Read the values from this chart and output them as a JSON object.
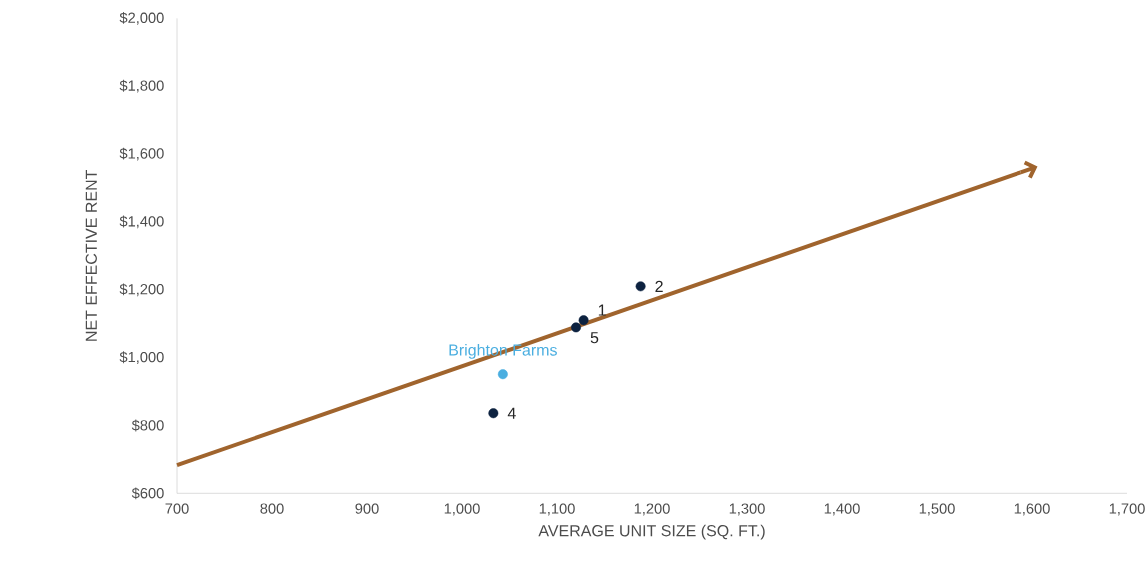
{
  "chart_data": {
    "type": "scatter",
    "xlabel": "AVERAGE UNIT SIZE (SQ. FT.)",
    "ylabel": "NET EFFECTIVE RENT",
    "xlim": [
      700,
      1700
    ],
    "ylim": [
      600,
      2000
    ],
    "xticks": [
      700,
      800,
      900,
      {
        "value": 1000,
        "label": "1,000"
      },
      {
        "value": 1100,
        "label": "1,100"
      },
      {
        "value": 1200,
        "label": "1,200"
      },
      {
        "value": 1300,
        "label": "1,300"
      },
      {
        "value": 1400,
        "label": "1,400"
      },
      {
        "value": 1500,
        "label": "1,500"
      },
      {
        "value": 1600,
        "label": "1,600"
      },
      {
        "value": 1700,
        "label": "1,700"
      }
    ],
    "yticks": [
      {
        "value": 600,
        "label": "$600"
      },
      {
        "value": 800,
        "label": "$800"
      },
      {
        "value": 1000,
        "label": "$1,000"
      },
      {
        "value": 1200,
        "label": "$1,200"
      },
      {
        "value": 1400,
        "label": "$1,400"
      },
      {
        "value": 1600,
        "label": "$1,600"
      },
      {
        "value": 1800,
        "label": "$1,800"
      },
      {
        "value": 2000,
        "label": "$2,000"
      }
    ],
    "grid": false,
    "legend": false,
    "series": [
      {
        "type": "line",
        "color": "#a0642d",
        "x": [
          700,
          1588
        ],
        "values": [
          683,
          1546
        ],
        "marker": "none",
        "line_style": "solid"
      },
      {
        "color": "#0d2240",
        "marker": "circle",
        "x": [
          1188,
          1128,
          1120,
          1033
        ],
        "values": [
          1210,
          1110,
          1089,
          836
        ]
      },
      {
        "name": "Brighton Farms",
        "color": "#4aaee0",
        "marker": "circle",
        "x": [
          1043
        ],
        "values": [
          951
        ]
      }
    ],
    "annotations": [
      {
        "text": "2",
        "x": 1188,
        "y": 1210
      },
      {
        "text": "1",
        "x": 1128,
        "y": 1110
      },
      {
        "text": "5",
        "x": 1120,
        "y": 1089
      },
      {
        "text": "4",
        "x": 1033,
        "y": 836
      }
    ]
  }
}
